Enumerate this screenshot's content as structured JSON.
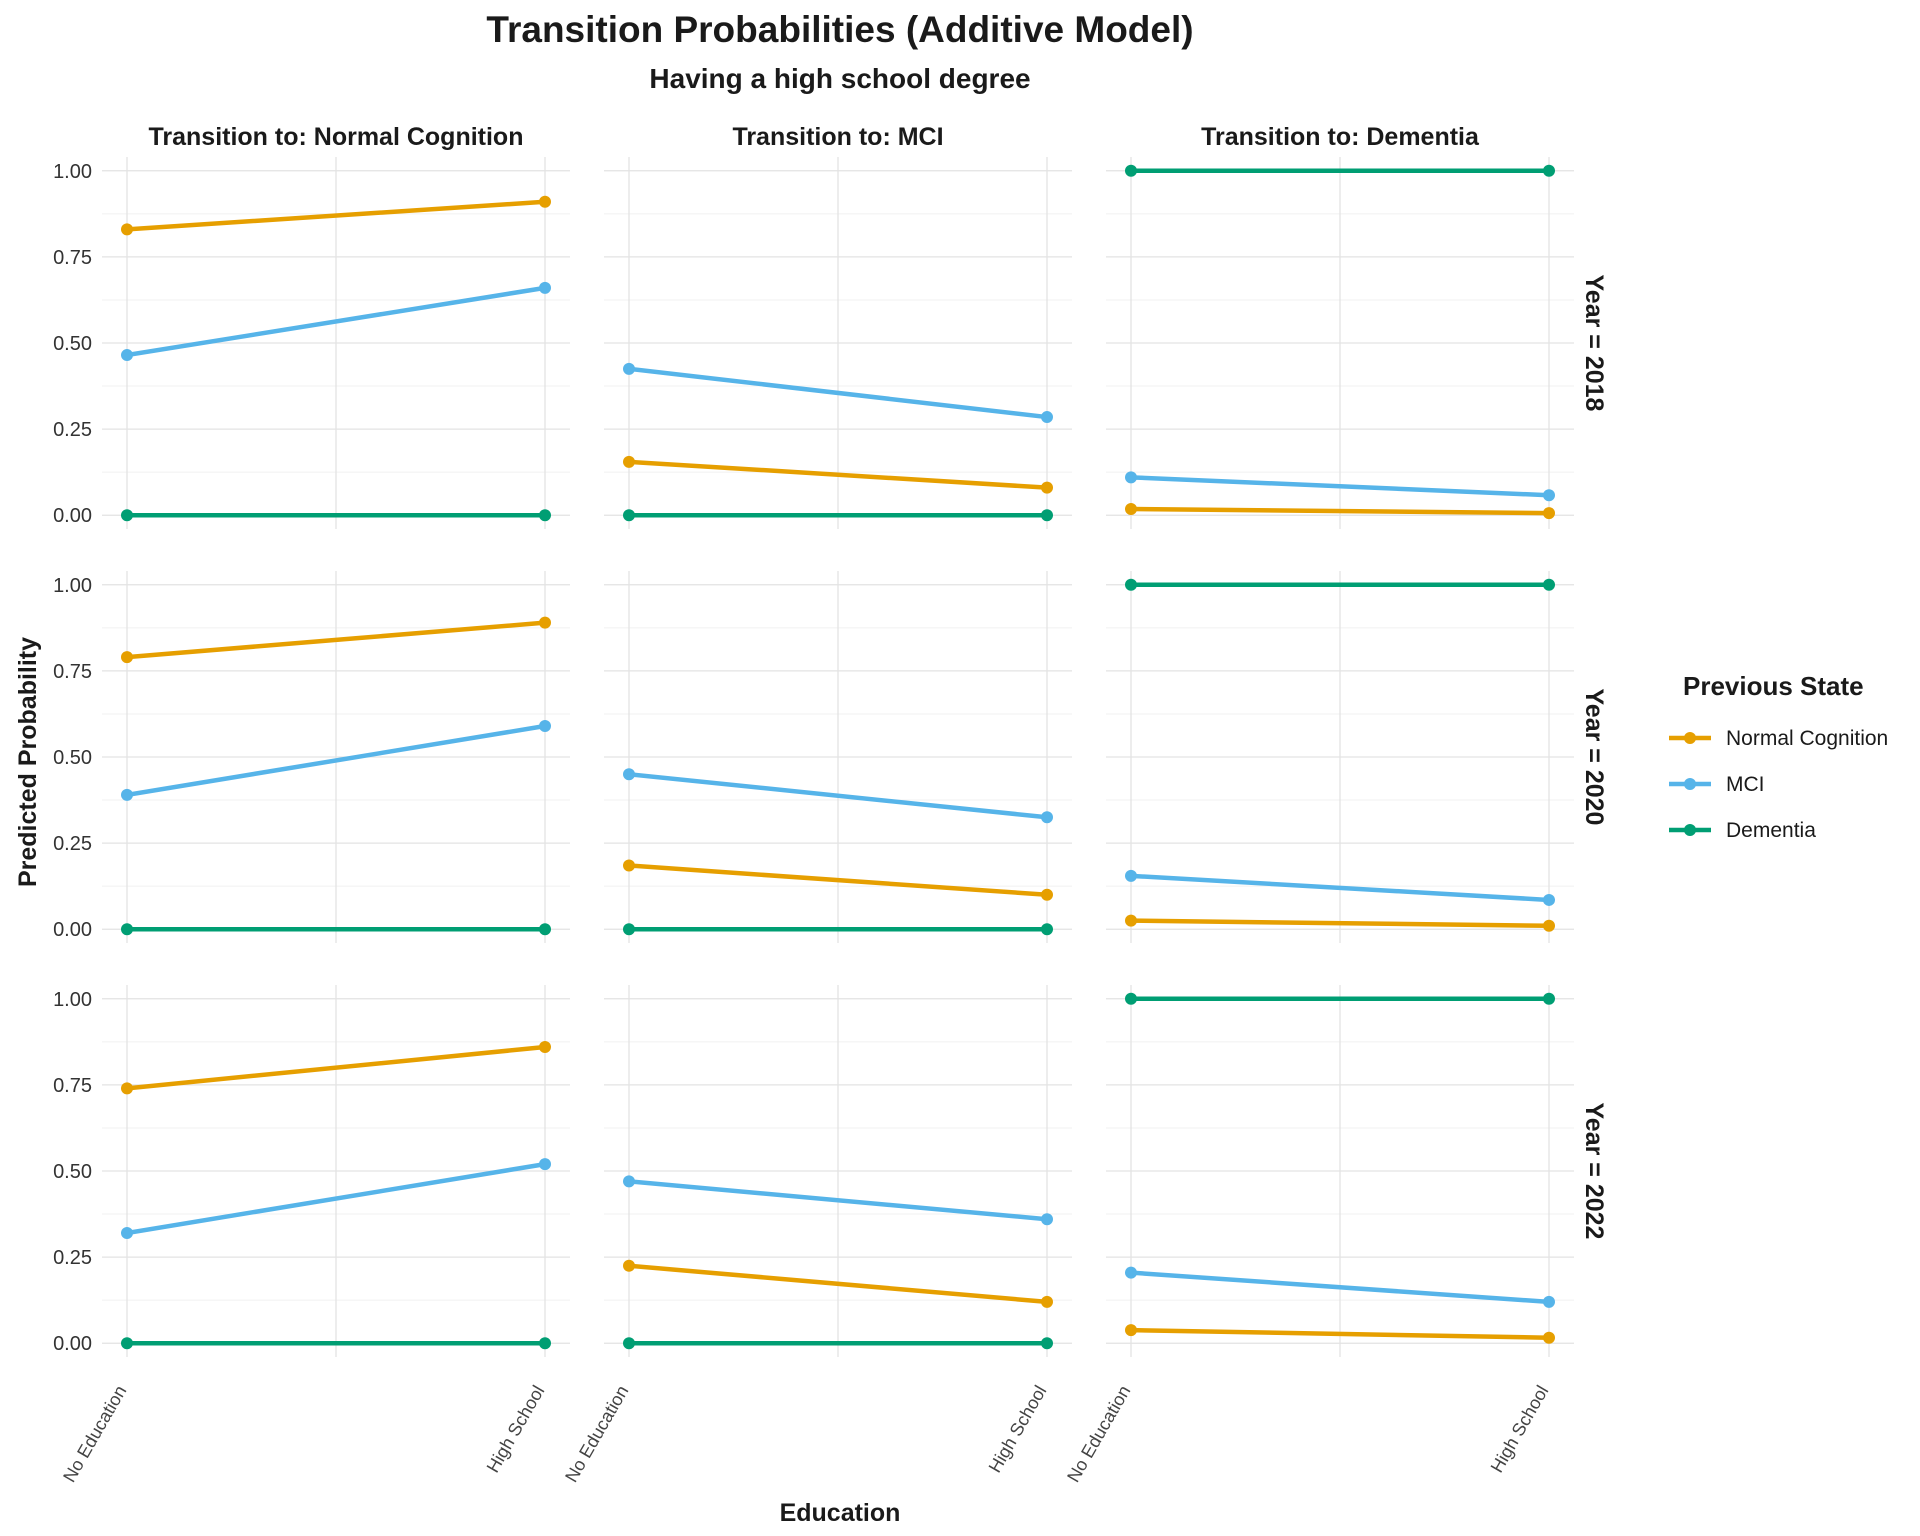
{
  "chart_data": {
    "type": "line",
    "title": "Transition Probabilities (Additive Model)",
    "subtitle": "Having a high school degree",
    "xlabel": "Education",
    "ylabel": "Predicted Probability",
    "categories": [
      "No Education",
      "High School"
    ],
    "y_ticks": [
      "0.00",
      "0.25",
      "0.50",
      "0.75",
      "1.00"
    ],
    "ylim": [
      -0.04,
      1.04
    ],
    "grid": true,
    "legend": {
      "title": "Previous State",
      "position": "right",
      "items": [
        {
          "name": "Normal Cognition",
          "color": "#E69F00"
        },
        {
          "name": "MCI",
          "color": "#56B4E9"
        },
        {
          "name": "Dementia",
          "color": "#009E73"
        }
      ]
    },
    "columns": [
      "Transition to: Normal Cognition",
      "Transition to: MCI",
      "Transition to: Dementia"
    ],
    "rows": [
      "Year = 2018",
      "Year = 2020",
      "Year = 2022"
    ],
    "panels": [
      [
        {
          "series": [
            {
              "name": "Normal Cognition",
              "values": [
                0.83,
                0.91
              ]
            },
            {
              "name": "MCI",
              "values": [
                0.465,
                0.66
              ]
            },
            {
              "name": "Dementia",
              "values": [
                0.0,
                0.0
              ]
            }
          ]
        },
        {
          "series": [
            {
              "name": "Normal Cognition",
              "values": [
                0.155,
                0.08
              ]
            },
            {
              "name": "MCI",
              "values": [
                0.425,
                0.285
              ]
            },
            {
              "name": "Dementia",
              "values": [
                0.0,
                0.0
              ]
            }
          ]
        },
        {
          "series": [
            {
              "name": "Normal Cognition",
              "values": [
                0.018,
                0.006
              ]
            },
            {
              "name": "MCI",
              "values": [
                0.11,
                0.058
              ]
            },
            {
              "name": "Dementia",
              "values": [
                1.0,
                1.0
              ]
            }
          ]
        }
      ],
      [
        {
          "series": [
            {
              "name": "Normal Cognition",
              "values": [
                0.79,
                0.89
              ]
            },
            {
              "name": "MCI",
              "values": [
                0.39,
                0.59
              ]
            },
            {
              "name": "Dementia",
              "values": [
                0.0,
                0.0
              ]
            }
          ]
        },
        {
          "series": [
            {
              "name": "Normal Cognition",
              "values": [
                0.185,
                0.1
              ]
            },
            {
              "name": "MCI",
              "values": [
                0.45,
                0.325
              ]
            },
            {
              "name": "Dementia",
              "values": [
                0.0,
                0.0
              ]
            }
          ]
        },
        {
          "series": [
            {
              "name": "Normal Cognition",
              "values": [
                0.025,
                0.01
              ]
            },
            {
              "name": "MCI",
              "values": [
                0.155,
                0.085
              ]
            },
            {
              "name": "Dementia",
              "values": [
                1.0,
                1.0
              ]
            }
          ]
        }
      ],
      [
        {
          "series": [
            {
              "name": "Normal Cognition",
              "values": [
                0.74,
                0.86
              ]
            },
            {
              "name": "MCI",
              "values": [
                0.32,
                0.52
              ]
            },
            {
              "name": "Dementia",
              "values": [
                0.0,
                0.0
              ]
            }
          ]
        },
        {
          "series": [
            {
              "name": "Normal Cognition",
              "values": [
                0.225,
                0.12
              ]
            },
            {
              "name": "MCI",
              "values": [
                0.47,
                0.36
              ]
            },
            {
              "name": "Dementia",
              "values": [
                0.0,
                0.0
              ]
            }
          ]
        },
        {
          "series": [
            {
              "name": "Normal Cognition",
              "values": [
                0.038,
                0.016
              ]
            },
            {
              "name": "MCI",
              "values": [
                0.205,
                0.12
              ]
            },
            {
              "name": "Dementia",
              "values": [
                1.0,
                1.0
              ]
            }
          ]
        }
      ]
    ]
  }
}
